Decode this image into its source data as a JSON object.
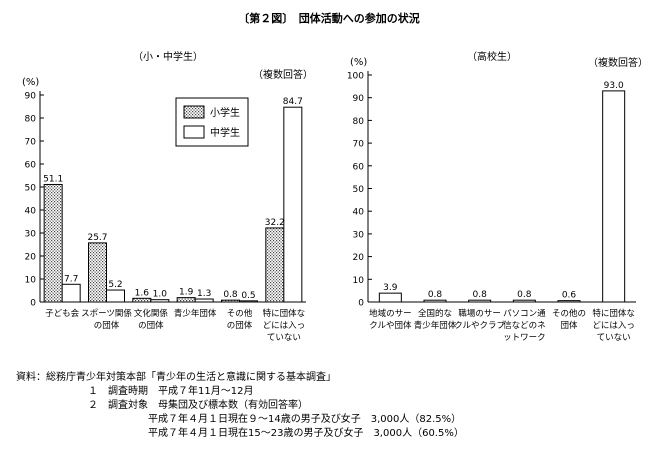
{
  "figure_title": "〔第２図〕　団体活動への参加の状況",
  "chart_data": [
    {
      "type": "bar",
      "title": "（小・中学生）",
      "ylabel": "(%)",
      "note": "（複数回答）",
      "ylim": [
        0,
        90
      ],
      "yticks": [
        0,
        10,
        20,
        30,
        40,
        50,
        60,
        70,
        80,
        90
      ],
      "grid": false,
      "legend_position": "top-center",
      "categories": [
        [
          "子ども会"
        ],
        [
          "スポーツ関係",
          "の団体"
        ],
        [
          "文化関係",
          "の団体"
        ],
        [
          "青少年団体"
        ],
        [
          "その他",
          "の団体"
        ],
        [
          "特に団体な",
          "どには入っ",
          "ていない"
        ]
      ],
      "series": [
        {
          "name": "小学生",
          "values": [
            51.1,
            25.7,
            1.6,
            1.9,
            0.8,
            32.2
          ],
          "value_labels": [
            "51.1",
            "25.7",
            "1.6",
            "1.9",
            "0.8",
            "32.2"
          ]
        },
        {
          "name": "中学生",
          "values": [
            7.7,
            5.2,
            1.0,
            1.3,
            0.5,
            84.7
          ],
          "value_labels": [
            "7.7",
            "5.2",
            "1.0",
            "1.3",
            "0.5",
            "84.7"
          ]
        }
      ]
    },
    {
      "type": "bar",
      "title": "（高校生）",
      "ylabel": "(%)",
      "note": "（複数回答）",
      "ylim": [
        0,
        100
      ],
      "yticks": [
        0,
        10,
        20,
        30,
        40,
        50,
        60,
        70,
        80,
        90,
        100
      ],
      "grid": false,
      "categories": [
        [
          "地域のサー",
          "クルや団体"
        ],
        [
          "全国的な",
          "青少年団体"
        ],
        [
          "職場のサー",
          "クルやクラブ"
        ],
        [
          "パソコン通",
          "信などのネ",
          "ットワーク"
        ],
        [
          "その他の",
          "団体"
        ],
        [
          "特に団体な",
          "どには入っ",
          "ていない"
        ]
      ],
      "series": [
        {
          "values": [
            3.9,
            0.8,
            0.8,
            0.8,
            0.6,
            93.0
          ],
          "value_labels": [
            "3.9",
            "0.8",
            "0.8",
            "0.8",
            "0.6",
            "93.0"
          ]
        }
      ]
    }
  ],
  "source": {
    "line1": "資料：総務庁青少年対策本部「青少年の生活と意識に関する基本調査」",
    "line2": "１　調査時期　平成７年11月〜12月",
    "line3": "２　調査対象　母集団及び標本数（有効回答率）",
    "line4": "平成７年４月１日現在９〜14歳の男子及び女子　3,000人（82.5%）",
    "line5": "平成７年４月１日現在15〜23歳の男子及び女子　3,000人（60.5%）"
  }
}
